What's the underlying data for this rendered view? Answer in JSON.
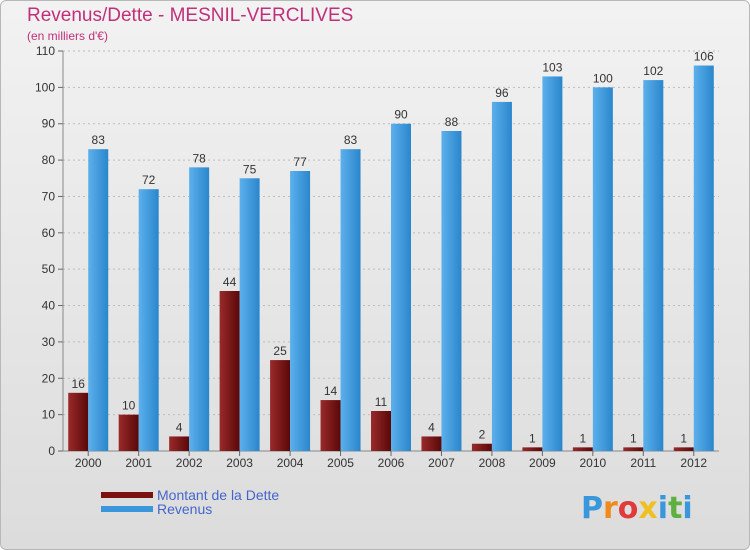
{
  "title": "Revenus/Dette - MESNIL-VERCLIVES",
  "subtitle": "(en milliers d'€)",
  "colors": {
    "debt": "#7a1010",
    "revenue": "#3a97dc",
    "title": "#c0307a",
    "legend_text": "#4466cc"
  },
  "logo": {
    "text": "Proxiti",
    "letters": [
      "P",
      "r",
      "o",
      "x",
      "i",
      "t",
      "i"
    ],
    "letter_colors": [
      "#3a97dc",
      "#f08a1c",
      "#e03a3a",
      "#f0c020",
      "#3a97dc",
      "#5fb040",
      "#3a97dc"
    ]
  },
  "chart_data": {
    "type": "bar",
    "title": "Revenus/Dette - MESNIL-VERCLIVES",
    "subtitle": "(en milliers d'€)",
    "categories": [
      "2000",
      "2001",
      "2002",
      "2003",
      "2004",
      "2005",
      "2006",
      "2007",
      "2008",
      "2009",
      "2010",
      "2011",
      "2012"
    ],
    "series": [
      {
        "name": "Montant de la Dette",
        "color": "#7a1010",
        "values": [
          16,
          10,
          4,
          44,
          25,
          14,
          11,
          4,
          2,
          1,
          1,
          1,
          1
        ]
      },
      {
        "name": "Revenus",
        "color": "#3a97dc",
        "values": [
          83,
          72,
          78,
          75,
          77,
          83,
          90,
          88,
          96,
          103,
          100,
          102,
          106
        ]
      }
    ],
    "ylim": [
      0,
      110
    ],
    "yticks": [
      0,
      10,
      20,
      30,
      40,
      50,
      60,
      70,
      80,
      90,
      100,
      110
    ],
    "grid": true,
    "legend": "bottom-left"
  }
}
